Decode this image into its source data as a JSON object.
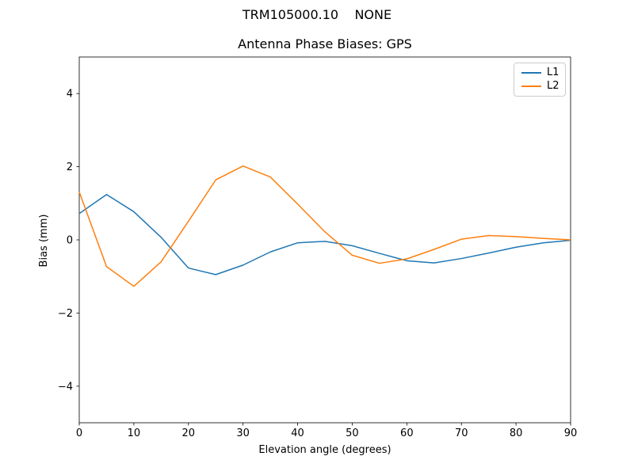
{
  "chart_data": {
    "type": "line",
    "suptitle": "TRM105000.10    NONE",
    "title": "Antenna Phase Biases: GPS",
    "xlabel": "Elevation angle (degrees)",
    "ylabel": "Bias (mm)",
    "xlim": [
      0,
      90
    ],
    "ylim": [
      -5,
      5
    ],
    "grid": false,
    "legend_position": "upper right",
    "xticks": {
      "values": [
        0,
        10,
        20,
        30,
        40,
        50,
        60,
        70,
        80,
        90
      ],
      "labels": [
        "0",
        "10",
        "20",
        "30",
        "40",
        "50",
        "60",
        "70",
        "80",
        "90"
      ]
    },
    "yticks": {
      "values": [
        -4,
        -2,
        0,
        2,
        4
      ],
      "labels": [
        "−4",
        "−2",
        "0",
        "2",
        "4"
      ]
    },
    "x": [
      0,
      5,
      10,
      15,
      20,
      25,
      30,
      35,
      40,
      45,
      50,
      55,
      60,
      65,
      70,
      75,
      80,
      85,
      90
    ],
    "series": [
      {
        "name": "L1",
        "color": "#1f77b4",
        "values": [
          0.72,
          1.24,
          0.77,
          0.07,
          -0.77,
          -0.95,
          -0.69,
          -0.33,
          -0.08,
          -0.04,
          -0.16,
          -0.37,
          -0.57,
          -0.63,
          -0.51,
          -0.36,
          -0.2,
          -0.08,
          -0.01
        ]
      },
      {
        "name": "L2",
        "color": "#ff7f0e",
        "values": [
          1.31,
          -0.73,
          -1.27,
          -0.6,
          0.51,
          1.64,
          2.02,
          1.72,
          0.98,
          0.22,
          -0.42,
          -0.64,
          -0.52,
          -0.26,
          0.02,
          0.12,
          0.09,
          0.04,
          0.0
        ]
      }
    ]
  }
}
